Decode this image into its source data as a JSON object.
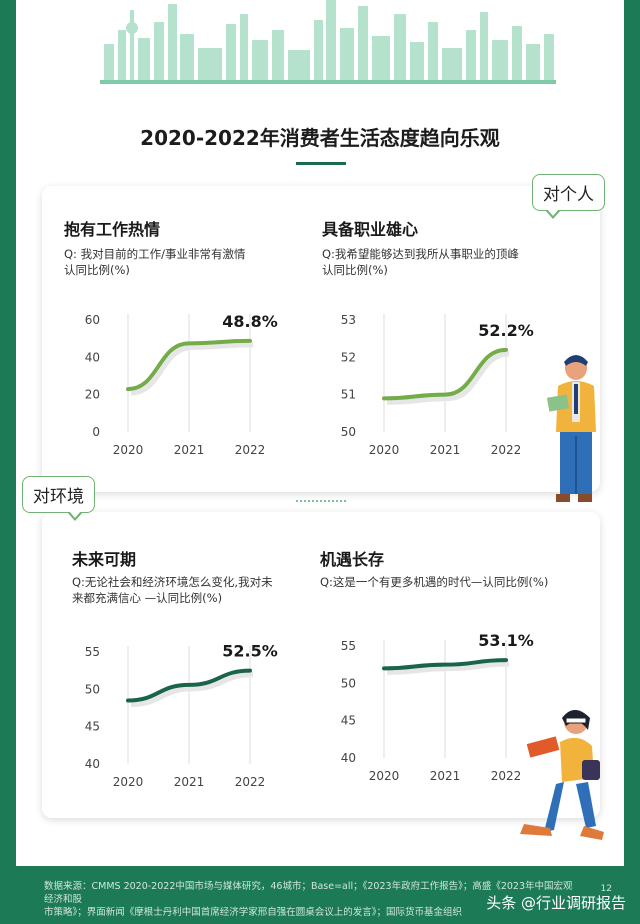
{
  "header": {
    "title": "2020-2022年消费者生活态度趋向乐观"
  },
  "tags": {
    "personal": "对个人",
    "environment": "对环境"
  },
  "panels": [
    {
      "title": "抱有工作热情",
      "question": "Q: 我对目前的工作/事业非常有激情",
      "unit": "认同比例(%)"
    },
    {
      "title": "具备职业雄心",
      "question": "Q:我希望能够达到我所从事职业的顶峰",
      "unit": "认同比例(%)"
    },
    {
      "title": "未来可期",
      "question": "Q:无论社会和经济环境怎么变化,我对未",
      "question2": "来都充满信心 —认同比例(%)"
    },
    {
      "title": "机遇长存",
      "question": "Q:这是一个有更多机遇的时代—认同比例(%)"
    }
  ],
  "chart_data": [
    {
      "type": "line",
      "title": "抱有工作热情",
      "x": [
        "2020",
        "2021",
        "2022"
      ],
      "y": [
        23,
        47.5,
        48.8
      ],
      "yticks": [
        "0",
        "20",
        "40",
        "60"
      ],
      "ylim": [
        0,
        60
      ],
      "data_label": "48.8%",
      "color": "#74ac4a"
    },
    {
      "type": "line",
      "title": "具备职业雄心",
      "x": [
        "2020",
        "2021",
        "2022"
      ],
      "y": [
        50.9,
        51.0,
        52.2
      ],
      "yticks": [
        "50",
        "51",
        "52",
        "53"
      ],
      "ylim": [
        50,
        53
      ],
      "data_label": "52.2%",
      "color": "#74ac4a"
    },
    {
      "type": "line",
      "title": "未来可期",
      "x": [
        "2020",
        "2021",
        "2022"
      ],
      "y": [
        48.5,
        50.6,
        52.5
      ],
      "yticks": [
        "40",
        "45",
        "50",
        "55"
      ],
      "ylim": [
        40,
        55
      ],
      "data_label": "52.5%",
      "color": "#1a6447"
    },
    {
      "type": "line",
      "title": "机遇长存",
      "x": [
        "2020",
        "2021",
        "2022"
      ],
      "y": [
        52.0,
        52.5,
        53.1
      ],
      "yticks": [
        "40",
        "45",
        "50",
        "55"
      ],
      "ylim": [
        40,
        55
      ],
      "data_label": "53.1%",
      "color": "#1a6447"
    }
  ],
  "footer": {
    "source": "数据来源：CMMS 2020-2022中国市场与媒体研究，46城市；Base=all；《2023年政府工作报告》；高盛《2023年中国宏观经济和股",
    "source2": "市策略》；界面新闻《摩根士丹利中国首席经济学家邢自强在圆桌会议上的发言》；国际货币基金组织",
    "page": "12",
    "watermark": "头条 @行业调研报告"
  }
}
